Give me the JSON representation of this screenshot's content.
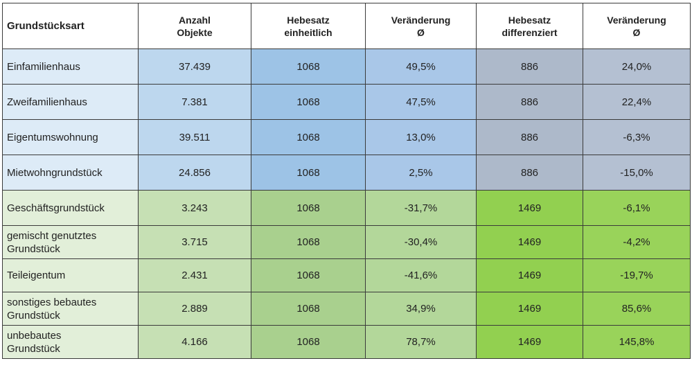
{
  "headers": [
    "Grundstücksart",
    "Anzahl\nObjekte",
    "Hebesatz\neinheitlich",
    "Veränderung\nØ",
    "Hebesatz\ndifferenziert",
    "Veränderung\nØ"
  ],
  "rows": [
    {
      "group": "blue",
      "cells": [
        "Einfamilienhaus",
        "37.439",
        "1068",
        "49,5%",
        "886",
        "24,0%"
      ]
    },
    {
      "group": "blue",
      "cells": [
        "Zweifamilienhaus",
        "7.381",
        "1068",
        "47,5%",
        "886",
        "22,4%"
      ]
    },
    {
      "group": "blue",
      "cells": [
        "Eigentumswohnung",
        "39.511",
        "1068",
        "13,0%",
        "886",
        "-6,3%"
      ]
    },
    {
      "group": "blue",
      "cells": [
        "Mietwohngrundstück",
        "24.856",
        "1068",
        "2,5%",
        "886",
        "-15,0%"
      ]
    },
    {
      "group": "green",
      "cells": [
        "Geschäftsgrundstück",
        "3.243",
        "1068",
        "-31,7%",
        "1469",
        "-6,1%"
      ]
    },
    {
      "group": "green",
      "cells": [
        "gemischt genutztes\nGrundstück",
        "3.715",
        "1068",
        "-30,4%",
        "1469",
        "-4,2%"
      ]
    },
    {
      "group": "green",
      "cells": [
        "Teileigentum",
        "2.431",
        "1068",
        "-41,6%",
        "1469",
        "-19,7%"
      ]
    },
    {
      "group": "green",
      "cells": [
        "sonstiges bebautes\nGrundstück",
        "2.889",
        "1068",
        "34,9%",
        "1469",
        "85,6%"
      ]
    },
    {
      "group": "green",
      "cells": [
        "unbebautes\nGrundstück",
        "4.166",
        "1068",
        "78,7%",
        "1469",
        "145,8%"
      ]
    }
  ],
  "colors": {
    "blue": [
      "#ddebf7",
      "#bdd7ee",
      "#9dc3e6",
      "#a9c7e8",
      "#adb9ca",
      "#b4c0d2"
    ],
    "green": [
      "#e2efd9",
      "#c6e0b4",
      "#a9d08e",
      "#b3d79a",
      "#92d050",
      "#99d35a"
    ]
  }
}
